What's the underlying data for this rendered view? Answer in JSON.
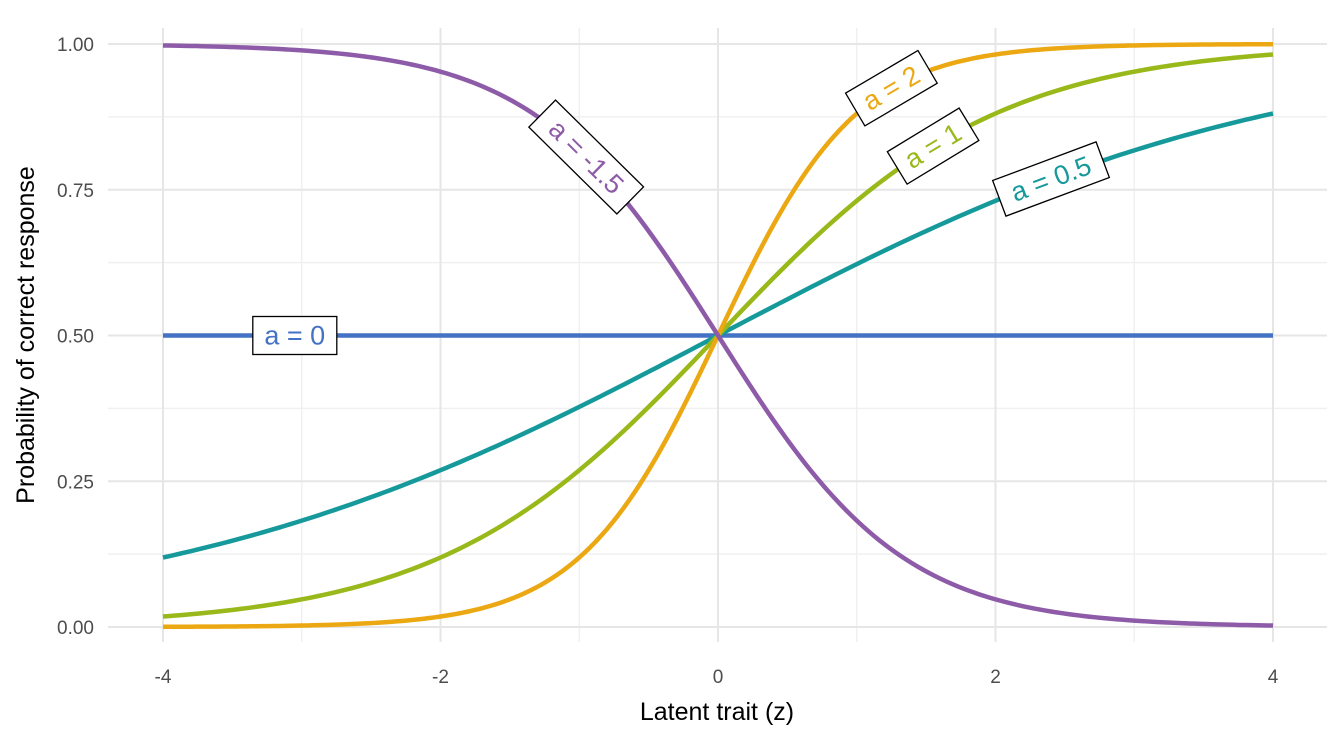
{
  "chart_data": {
    "type": "line",
    "title": "",
    "xlabel": "Latent trait (z)",
    "ylabel": "Probability of correct response",
    "xlim": [
      -4,
      4
    ],
    "ylim": [
      0,
      1
    ],
    "x_ticks": [
      -4,
      -2,
      0,
      2,
      4
    ],
    "x_tick_labels": [
      "-4",
      "-2",
      "0",
      "2",
      "4"
    ],
    "y_ticks": [
      0,
      0.25,
      0.5,
      0.75,
      1
    ],
    "y_tick_labels": [
      "0.00",
      "0.25",
      "0.50",
      "0.75",
      "1.00"
    ],
    "grid": true,
    "legend": "none (direct labels on curves)",
    "x": [
      -4,
      -3.5,
      -3,
      -2.5,
      -2,
      -1.5,
      -1,
      -0.5,
      0,
      0.5,
      1,
      1.5,
      2,
      2.5,
      3,
      3.5,
      4
    ],
    "series": [
      {
        "name": "a = 0",
        "a": 0,
        "color": "#4472C4",
        "values": [
          0.5,
          0.5,
          0.5,
          0.5,
          0.5,
          0.5,
          0.5,
          0.5,
          0.5,
          0.5,
          0.5,
          0.5,
          0.5,
          0.5,
          0.5,
          0.5,
          0.5
        ],
        "label_at": -3.05
      },
      {
        "name": "a = 0.5",
        "a": 0.5,
        "color": "#16999B",
        "values": [
          0.119,
          0.148,
          0.182,
          0.223,
          0.269,
          0.321,
          0.378,
          0.438,
          0.5,
          0.562,
          0.622,
          0.679,
          0.731,
          0.777,
          0.818,
          0.852,
          0.881
        ],
        "label_at": 2.4
      },
      {
        "name": "a = 1",
        "a": 1,
        "color": "#99B81A",
        "values": [
          0.018,
          0.029,
          0.047,
          0.076,
          0.119,
          0.182,
          0.269,
          0.378,
          0.5,
          0.622,
          0.731,
          0.818,
          0.881,
          0.924,
          0.953,
          0.971,
          0.982
        ],
        "label_at": 1.55
      },
      {
        "name": "a = 2",
        "a": 2,
        "color": "#EBA812",
        "values": [
          0.0003,
          0.0009,
          0.0025,
          0.0067,
          0.018,
          0.047,
          0.119,
          0.269,
          0.5,
          0.731,
          0.881,
          0.953,
          0.982,
          0.9933,
          0.9975,
          0.9991,
          0.9997
        ],
        "label_at": 1.25
      },
      {
        "name": "a = -1.5",
        "a": -1.5,
        "color": "#8D5BA8",
        "values": [
          0.9975,
          0.9948,
          0.989,
          0.977,
          0.953,
          0.905,
          0.818,
          0.679,
          0.5,
          0.321,
          0.182,
          0.095,
          0.047,
          0.023,
          0.011,
          0.0052,
          0.0025
        ],
        "label_at": -0.95
      }
    ]
  }
}
